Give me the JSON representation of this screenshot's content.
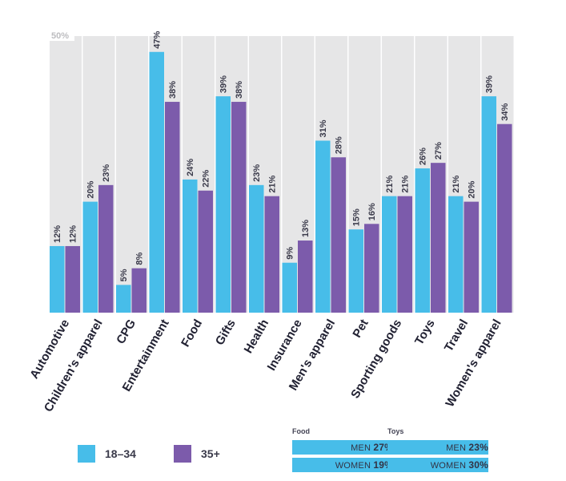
{
  "chart_data": {
    "type": "bar",
    "categories": [
      "Automotive",
      "Children's apparel",
      "CPG",
      "Entertainment",
      "Food",
      "Gifts",
      "Health",
      "Insurance",
      "Men's apparel",
      "Pet",
      "Sporting goods",
      "Toys",
      "Travel",
      "Women's apparel"
    ],
    "series": [
      {
        "name": "18–34",
        "color": "#47bde9",
        "values": [
          12,
          20,
          5,
          47,
          24,
          39,
          23,
          9,
          31,
          15,
          21,
          26,
          21,
          39
        ]
      },
      {
        "name": "35+",
        "color": "#7c5bab",
        "values": [
          12,
          23,
          8,
          38,
          22,
          38,
          21,
          13,
          28,
          16,
          21,
          27,
          20,
          34
        ]
      }
    ],
    "ylim": [
      0,
      50
    ],
    "max_label": "50%",
    "value_suffix": "%",
    "legend_position": "bottom-left",
    "column_background": "#e6e6e7"
  },
  "legend": [
    {
      "label": "18–34",
      "color": "#47bde9"
    },
    {
      "label": "35+",
      "color": "#7c5bab"
    }
  ],
  "insets": [
    {
      "title": "Food",
      "rows": [
        {
          "label": "MEN",
          "value": "27%"
        },
        {
          "label": "WOMEN",
          "value": "19%"
        }
      ]
    },
    {
      "title": "Toys",
      "rows": [
        {
          "label": "MEN",
          "value": "23%"
        },
        {
          "label": "WOMEN",
          "value": "30%"
        }
      ]
    }
  ]
}
